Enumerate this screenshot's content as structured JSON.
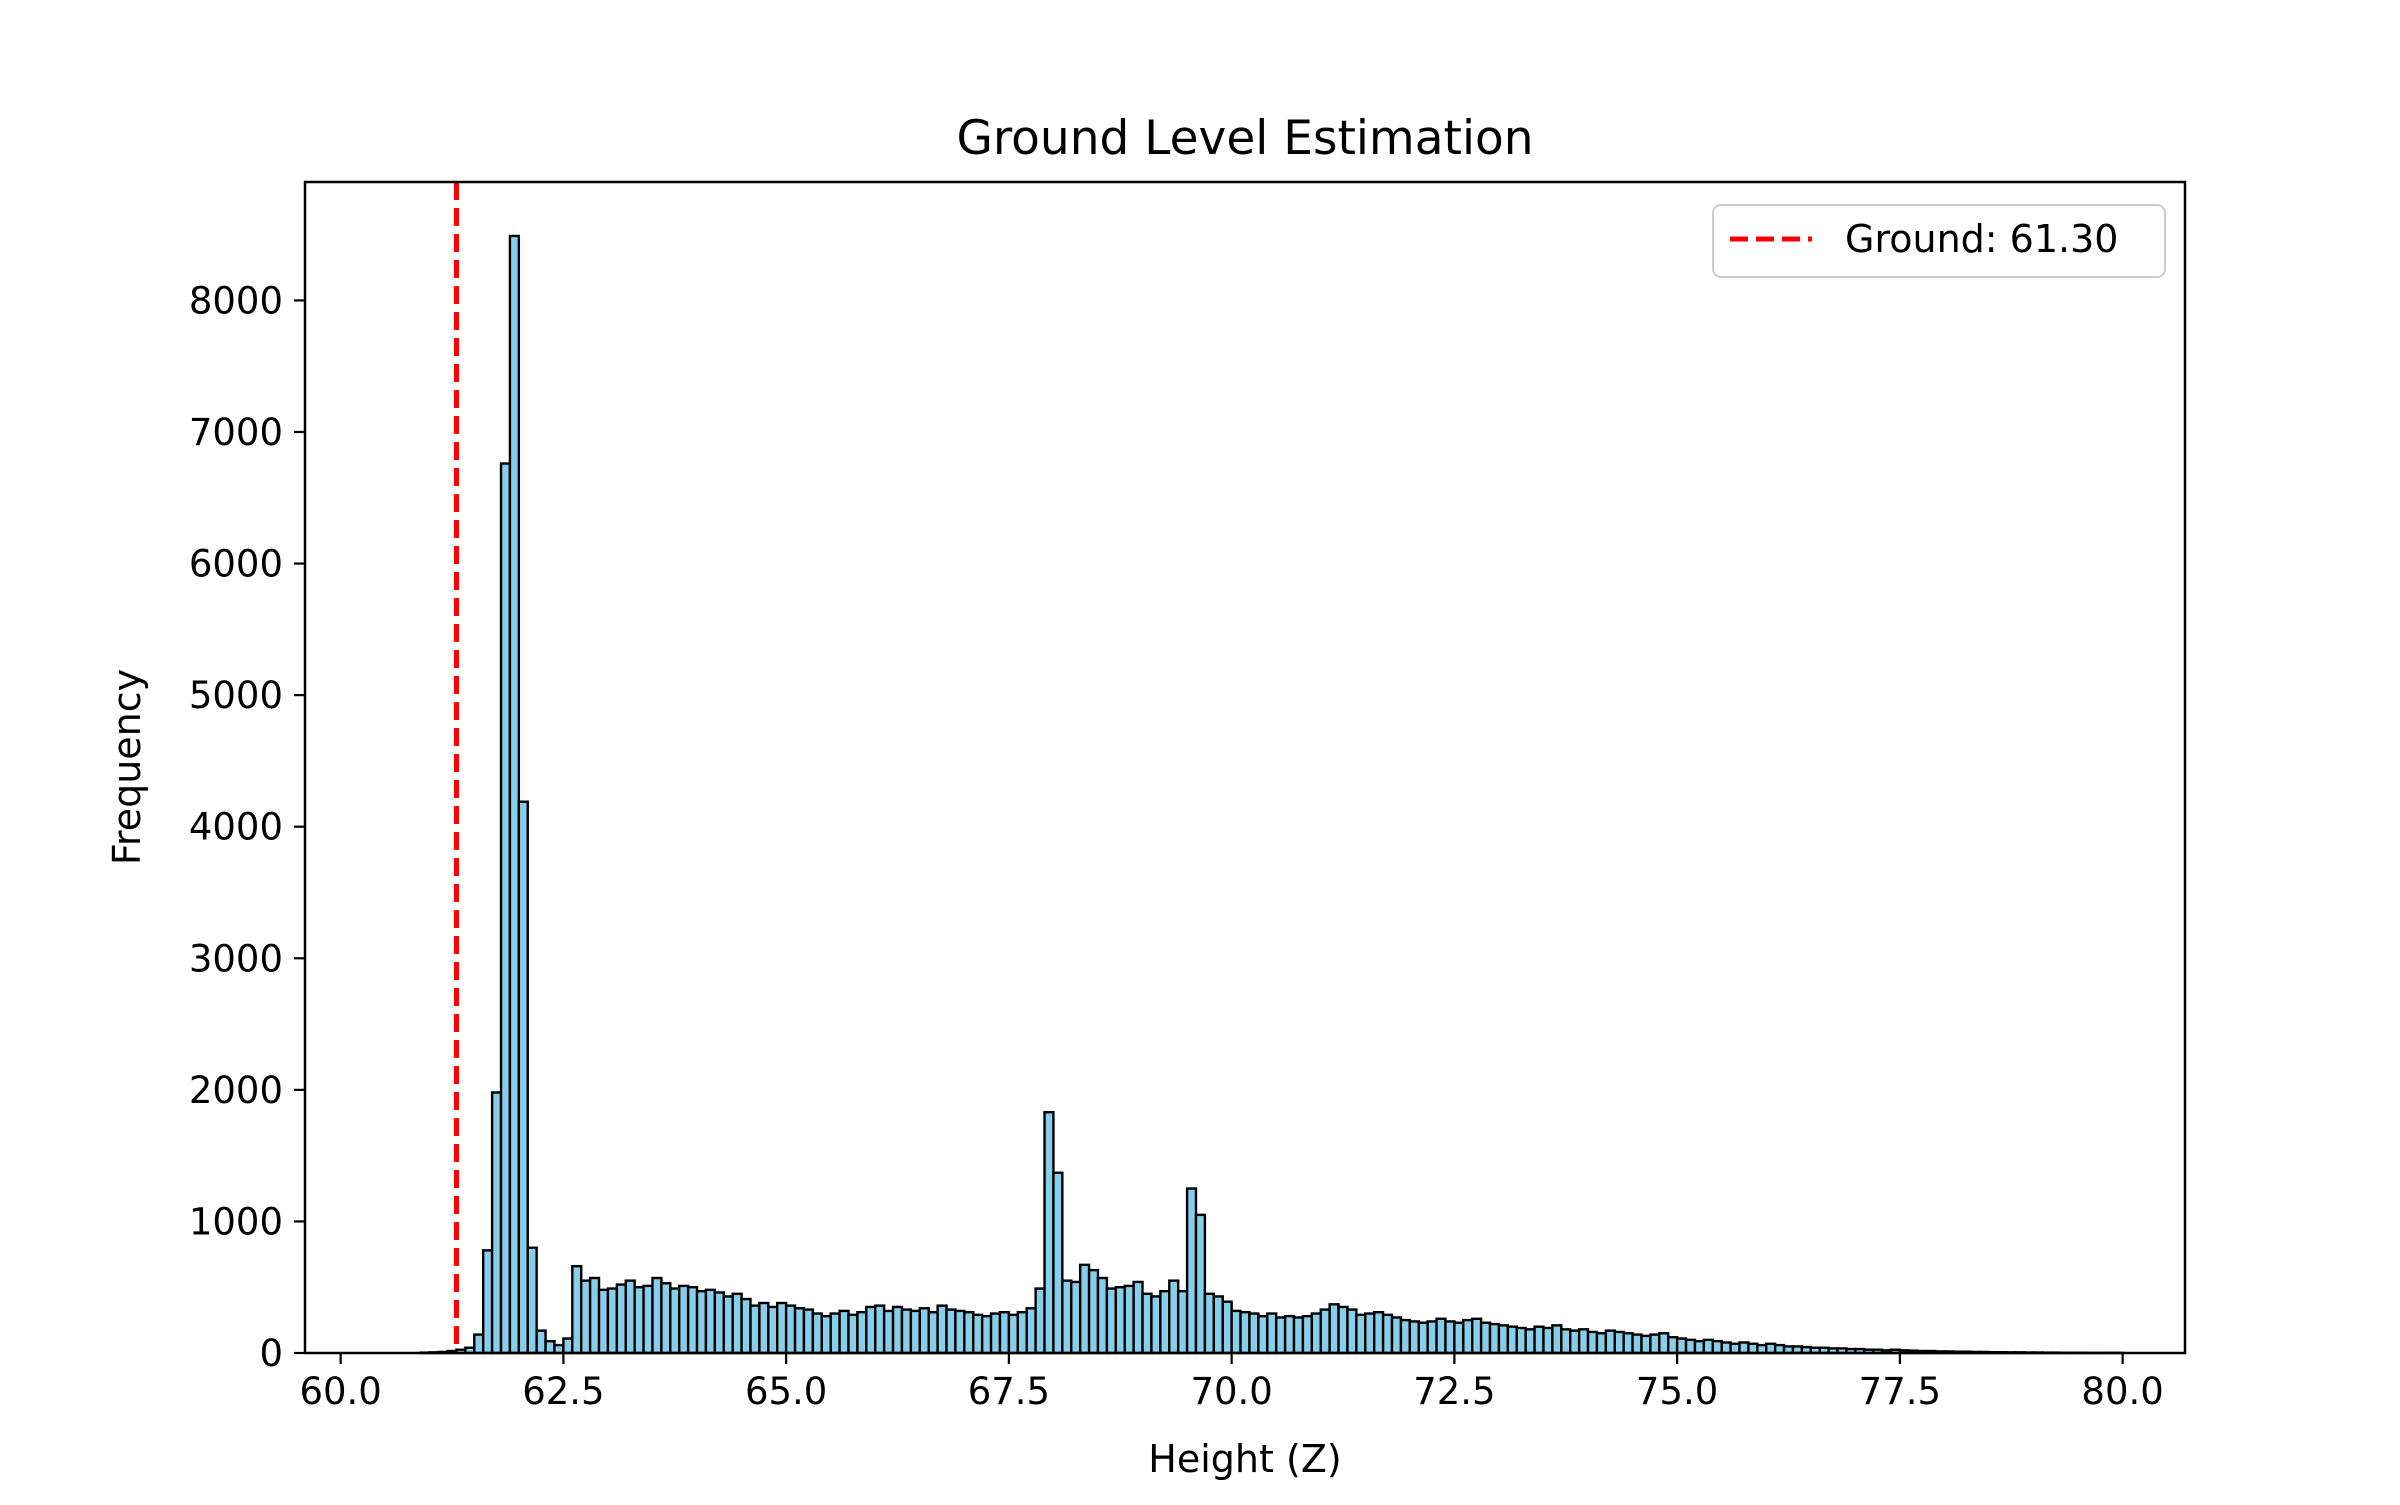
{
  "chart_data": {
    "type": "bar",
    "title": "Ground Level Estimation",
    "xlabel": "Height (Z)",
    "ylabel": "Frequency",
    "xlim": [
      59.6,
      80.7
    ],
    "ylim": [
      0,
      8900
    ],
    "xticks": [
      60.0,
      62.5,
      65.0,
      67.5,
      70.0,
      72.5,
      75.0,
      77.5,
      80.0
    ],
    "xtick_labels": [
      "60.0",
      "62.5",
      "65.0",
      "67.5",
      "70.0",
      "72.5",
      "75.0",
      "77.5",
      "80.0"
    ],
    "yticks": [
      0,
      1000,
      2000,
      3000,
      4000,
      5000,
      6000,
      7000,
      8000
    ],
    "ytick_labels": [
      "0",
      "1000",
      "2000",
      "3000",
      "4000",
      "5000",
      "6000",
      "7000",
      "8000"
    ],
    "bin_start": 60.0,
    "bin_width": 0.1,
    "bar_color": "#87ceeb",
    "edge_color": "#000000",
    "grid": false,
    "legend_position": "top-right",
    "reference_line": {
      "label": "Ground: 61.30",
      "x": 61.3,
      "color": "#ff0000",
      "style": "dashed"
    },
    "counts": [
      0,
      0,
      0,
      0,
      0,
      0,
      0,
      0,
      0,
      3,
      5,
      8,
      15,
      25,
      40,
      140,
      780,
      1980,
      6760,
      8490,
      4190,
      800,
      170,
      90,
      60,
      110,
      660,
      550,
      570,
      480,
      490,
      520,
      550,
      500,
      510,
      570,
      530,
      490,
      510,
      500,
      470,
      480,
      460,
      430,
      450,
      410,
      360,
      380,
      350,
      380,
      360,
      340,
      330,
      300,
      280,
      300,
      320,
      290,
      310,
      350,
      360,
      320,
      350,
      330,
      320,
      340,
      310,
      360,
      330,
      320,
      310,
      290,
      280,
      300,
      310,
      290,
      310,
      340,
      490,
      1830,
      1370,
      550,
      540,
      670,
      630,
      570,
      490,
      500,
      510,
      540,
      450,
      430,
      470,
      550,
      470,
      1250,
      1050,
      450,
      430,
      390,
      320,
      310,
      300,
      280,
      300,
      270,
      280,
      270,
      280,
      300,
      330,
      370,
      350,
      330,
      290,
      300,
      310,
      290,
      270,
      250,
      240,
      230,
      240,
      260,
      240,
      230,
      250,
      260,
      230,
      220,
      210,
      200,
      190,
      180,
      200,
      190,
      210,
      180,
      170,
      180,
      160,
      150,
      170,
      160,
      150,
      140,
      130,
      140,
      150,
      120,
      110,
      100,
      90,
      100,
      90,
      80,
      70,
      80,
      70,
      60,
      70,
      60,
      50,
      50,
      45,
      40,
      40,
      35,
      35,
      30,
      30,
      25,
      25,
      20,
      25,
      20,
      18,
      15,
      15,
      12,
      12,
      10,
      10,
      8,
      8,
      6,
      6,
      5,
      5,
      4,
      4,
      3,
      3,
      2,
      2,
      2,
      1,
      1,
      1,
      1,
      0,
      0,
      0,
      0,
      0,
      0,
      0,
      0
    ]
  }
}
